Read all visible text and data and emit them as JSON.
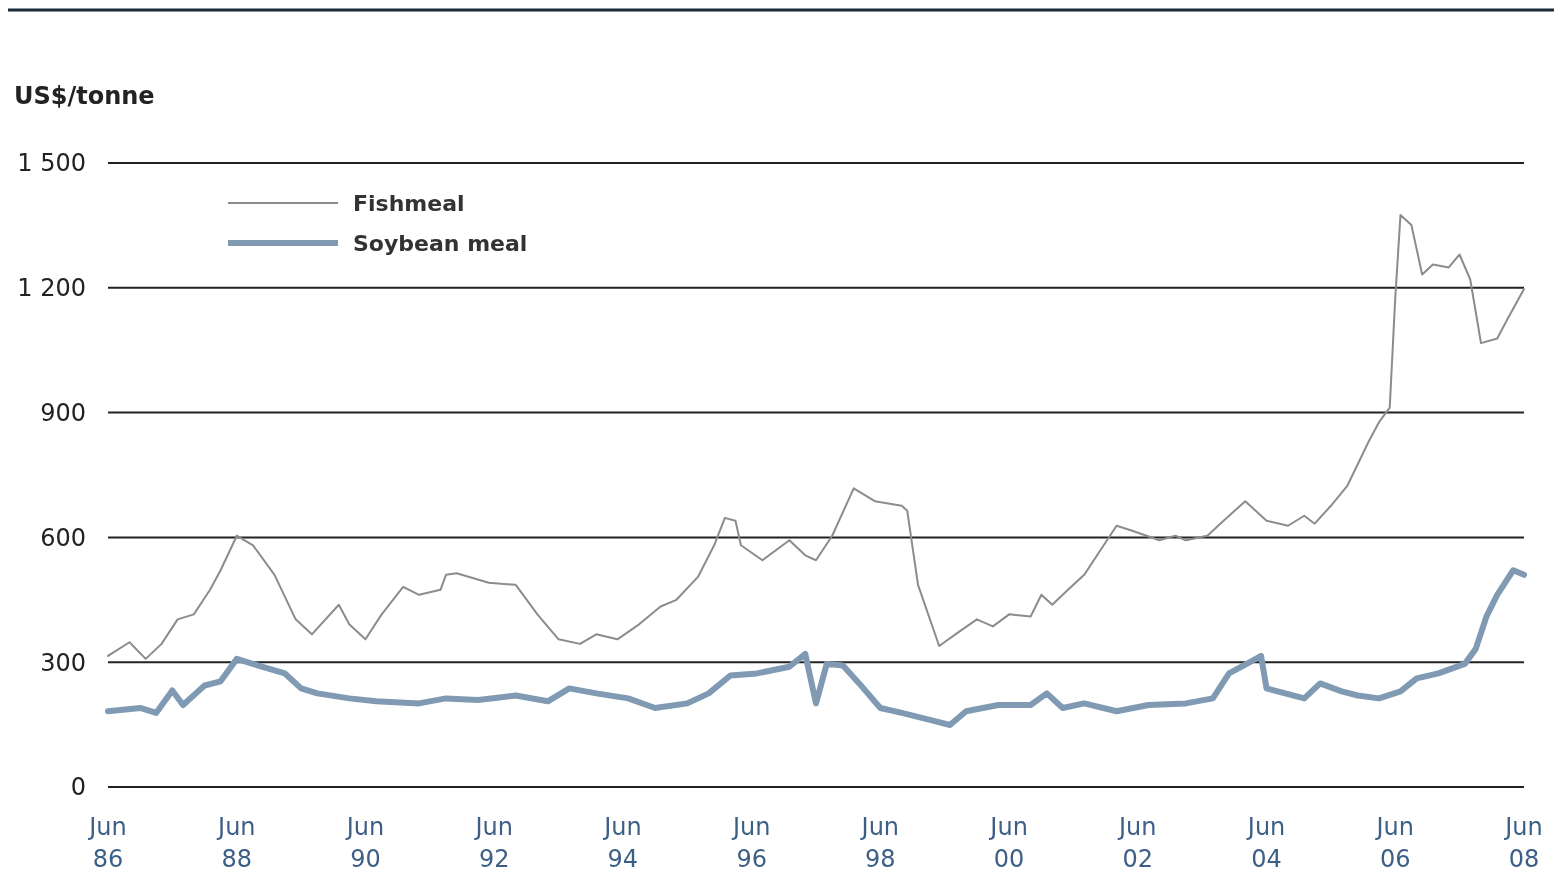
{
  "chart_data": {
    "type": "line",
    "ylabel": "US$/tonne",
    "xlim": [
      "1986-06",
      "2008-06"
    ],
    "xticks": [
      {
        "value": "1986-06",
        "label": "Jun 86"
      },
      {
        "value": "1988-06",
        "label": "Jun 88"
      },
      {
        "value": "1990-06",
        "label": "Jun 90"
      },
      {
        "value": "1992-06",
        "label": "Jun 92"
      },
      {
        "value": "1994-06",
        "label": "Jun 94"
      },
      {
        "value": "1996-06",
        "label": "Jun 96"
      },
      {
        "value": "1998-06",
        "label": "Jun 98"
      },
      {
        "value": "2000-06",
        "label": "Jun 00"
      },
      {
        "value": "2002-06",
        "label": "Jun 02"
      },
      {
        "value": "2004-06",
        "label": "Jun 04"
      },
      {
        "value": "2006-06",
        "label": "Jun 06"
      },
      {
        "value": "2008-06",
        "label": "Jun 08"
      }
    ],
    "ylim": [
      0,
      1500
    ],
    "yticks": [
      0,
      300,
      600,
      900,
      {
        "value": 1200,
        "label": "1 200"
      },
      {
        "value": 1500,
        "label": "1 500"
      }
    ],
    "grid": "y",
    "legend": "top left",
    "series": [
      {
        "name": "Fishmeal",
        "color": "#8c8c8c",
        "x": [
          "1986-06",
          "1986-10",
          "1987-01",
          "1987-04",
          "1987-07",
          "1987-10",
          "1988-01",
          "1988-03",
          "1988-06",
          "1988-09",
          "1989-01",
          "1989-05",
          "1989-08",
          "1990-01",
          "1990-03",
          "1990-06",
          "1990-09",
          "1991-01",
          "1991-04",
          "1991-08",
          "1991-09",
          "1991-11",
          "1992-05",
          "1992-10",
          "1993-02",
          "1993-06",
          "1993-10",
          "1994-01",
          "1994-05",
          "1994-09",
          "1995-01",
          "1995-04",
          "1995-08",
          "1995-11",
          "1996-01",
          "1996-03",
          "1996-04",
          "1996-08",
          "1997-01",
          "1997-04",
          "1997-06",
          "1997-09",
          "1998-01",
          "1998-05",
          "1998-10",
          "1998-11",
          "1999-01",
          "1999-05",
          "1999-08",
          "1999-12",
          "2000-03",
          "2000-06",
          "2000-10",
          "2000-12",
          "2001-02",
          "2001-05",
          "2001-08",
          "2001-11",
          "2002-02",
          "2002-05",
          "2002-10",
          "2003-01",
          "2003-03",
          "2003-07",
          "2003-10",
          "2004-02",
          "2004-06",
          "2004-10",
          "2005-01",
          "2005-03",
          "2005-06",
          "2005-09",
          "2006-01",
          "2006-03",
          "2006-05",
          "2006-06",
          "2006-07",
          "2006-09",
          "2006-11",
          "2007-01",
          "2007-04",
          "2007-06",
          "2007-08",
          "2007-10",
          "2008-01",
          "2008-03",
          "2008-06"
        ],
        "values": [
          315,
          348,
          308,
          344,
          403,
          415,
          474,
          521,
          604,
          581,
          510,
          403,
          367,
          438,
          391,
          355,
          415,
          481,
          462,
          474,
          510,
          514,
          491,
          486,
          415,
          355,
          344,
          367,
          355,
          391,
          434,
          450,
          505,
          581,
          647,
          640,
          581,
          545,
          593,
          557,
          545,
          604,
          718,
          687,
          676,
          664,
          486,
          339,
          367,
          403,
          386,
          415,
          410,
          462,
          438,
          474,
          510,
          569,
          628,
          616,
          593,
          604,
          593,
          604,
          640,
          687,
          640,
          628,
          652,
          633,
          676,
          723,
          830,
          877,
          912,
          1173,
          1375,
          1351,
          1232,
          1256,
          1249,
          1280,
          1220,
          1067,
          1078,
          1126,
          1197
        ]
      },
      {
        "name": "Soybean meal",
        "color": "#7f9ab2",
        "x": [
          "1986-06",
          "1986-12",
          "1987-03",
          "1987-06",
          "1987-08",
          "1987-12",
          "1988-03",
          "1988-06",
          "1988-10",
          "1989-03",
          "1989-06",
          "1989-09",
          "1990-03",
          "1990-08",
          "1991-04",
          "1991-09",
          "1992-03",
          "1992-10",
          "1993-04",
          "1993-08",
          "1994-01",
          "1994-07",
          "1994-12",
          "1995-06",
          "1995-10",
          "1996-02",
          "1996-07",
          "1997-01",
          "1997-04",
          "1997-05",
          "1997-06",
          "1997-08",
          "1997-11",
          "1998-02",
          "1998-06",
          "1998-10",
          "1999-04",
          "1999-07",
          "1999-10",
          "2000-04",
          "2000-10",
          "2001-01",
          "2001-04",
          "2001-08",
          "2002-02",
          "2002-08",
          "2003-03",
          "2003-08",
          "2003-11",
          "2004-03",
          "2004-05",
          "2004-06",
          "2005-01",
          "2005-04",
          "2005-08",
          "2005-11",
          "2006-03",
          "2006-07",
          "2006-10",
          "2007-02",
          "2007-07",
          "2007-09",
          "2007-11",
          "2008-01",
          "2008-04",
          "2008-06"
        ],
        "values": [
          182,
          190,
          178,
          232,
          197,
          244,
          254,
          308,
          292,
          273,
          237,
          225,
          213,
          206,
          201,
          213,
          209,
          220,
          206,
          237,
          225,
          213,
          190,
          201,
          225,
          268,
          273,
          289,
          320,
          261,
          201,
          296,
          292,
          249,
          190,
          178,
          159,
          149,
          182,
          197,
          197,
          225,
          190,
          201,
          182,
          197,
          201,
          213,
          273,
          301,
          315,
          237,
          213,
          249,
          230,
          220,
          213,
          230,
          261,
          273,
          296,
          332,
          410,
          462,
          521,
          510
        ]
      }
    ]
  }
}
